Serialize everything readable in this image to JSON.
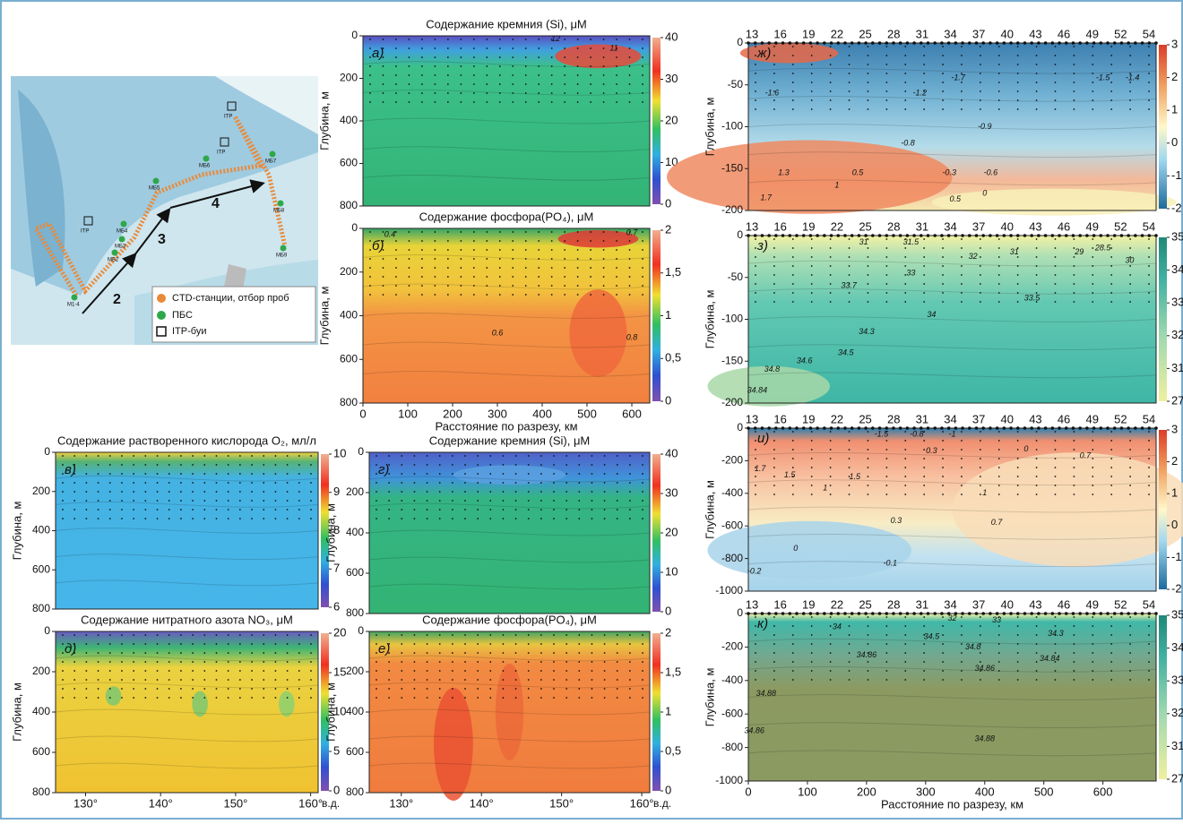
{
  "map": {
    "legend": [
      "CTD-станции, отбор проб",
      "ПБС",
      "ITP-буи"
    ],
    "section_labels": [
      "2",
      "3",
      "4"
    ],
    "station_labels": [
      "M1-4",
      "МБ2",
      "МБ3",
      "МБ4",
      "МБ5",
      "МБ6",
      "МБ7",
      "МБ8",
      "МБ9",
      "ITP",
      "ITP",
      "ITP"
    ]
  },
  "chart_data": [
    {
      "type": "contour",
      "label": "а)",
      "title": "Содержание кремния (Si), μM",
      "ylabel": "Глубина, м",
      "colormap": "rainbow",
      "xlim": [
        0,
        640
      ],
      "ylim": [
        800,
        0
      ],
      "yticks": [
        0,
        200,
        400,
        600,
        800
      ],
      "colorbar_ticks": [
        0,
        10,
        20,
        30,
        40
      ],
      "annotations": [
        {
          "value": 12,
          "x": 430,
          "y": 15
        },
        {
          "value": 11,
          "x": 560,
          "y": 60
        }
      ]
    },
    {
      "type": "contour",
      "label": "б)",
      "title": "Содержание фосфора(PO₄), μM",
      "ylabel": "Глубина, м",
      "xlabel": "Расстояние  по разрезу, км",
      "colormap": "rainbow",
      "xlim": [
        0,
        640
      ],
      "ylim": [
        800,
        0
      ],
      "xticks": [
        0,
        100,
        200,
        300,
        400,
        500,
        600
      ],
      "yticks": [
        0,
        200,
        400,
        600,
        800
      ],
      "colorbar_ticks": [
        0,
        {
          "value": 0.5,
          "label": "0,5"
        },
        1,
        {
          "value": 1.5,
          "label": "1,5"
        },
        2
      ],
      "annotations": [
        {
          "value": 0.4,
          "x": 60,
          "y": 30
        },
        {
          "value": 0.7,
          "x": 600,
          "y": 20
        },
        {
          "value": 0.8,
          "x": 600,
          "y": 500
        },
        {
          "value": 0.6,
          "x": 300,
          "y": 480
        }
      ]
    },
    {
      "type": "contour",
      "label": "в)",
      "title": "Содержание растворенного кислорода O₂, мл/л",
      "ylabel": "Глубина, м",
      "colormap": "rainbow",
      "xlim": [
        126,
        161
      ],
      "ylim": [
        800,
        0
      ],
      "yticks": [
        0,
        200,
        400,
        600,
        800
      ],
      "colorbar_ticks": [
        6,
        7,
        8,
        9,
        10
      ],
      "annotations": []
    },
    {
      "type": "contour",
      "label": "д)",
      "title": "Содержание нитратного азота NO₃, μM",
      "ylabel": "Глубина, м",
      "xunit": "в.д.",
      "colormap": "rainbow",
      "xlim": [
        126,
        161
      ],
      "ylim": [
        800,
        0
      ],
      "xticks": [
        {
          "value": 130,
          "label": "130°"
        },
        {
          "value": 140,
          "label": "140°"
        },
        {
          "value": 150,
          "label": "150°"
        },
        {
          "value": 160,
          "label": "160°"
        }
      ],
      "yticks": [
        0,
        200,
        400,
        600,
        800
      ],
      "colorbar_ticks": [
        0,
        5,
        10,
        15,
        20
      ],
      "annotations": []
    },
    {
      "type": "contour",
      "label": "г)",
      "title": "Содержание кремния (Si), μM",
      "ylabel": "Глубина, м",
      "colormap": "rainbow",
      "xlim": [
        126,
        161
      ],
      "ylim": [
        800,
        0
      ],
      "yticks": [
        0,
        200,
        400,
        600,
        800
      ],
      "colorbar_ticks": [
        0,
        10,
        20,
        30,
        40
      ],
      "annotations": []
    },
    {
      "type": "contour",
      "label": "е)",
      "title": "Содержание фосфора(PO₄), μM",
      "ylabel": "Глубина, м",
      "xunit": "в.д.",
      "colormap": "rainbow",
      "xlim": [
        126,
        161
      ],
      "ylim": [
        800,
        0
      ],
      "xticks": [
        {
          "value": 130,
          "label": "130°"
        },
        {
          "value": 140,
          "label": "140°"
        },
        {
          "value": 150,
          "label": "150°"
        },
        {
          "value": 160,
          "label": "160°"
        }
      ],
      "yticks": [
        0,
        200,
        400,
        600,
        800
      ],
      "colorbar_ticks": [
        0,
        {
          "value": 0.5,
          "label": "0,5"
        },
        1,
        {
          "value": 1.5,
          "label": "1,5"
        },
        2
      ],
      "annotations": []
    },
    {
      "type": "contour",
      "label": "ж)",
      "ylabel": "Глубина, м",
      "colormap": "thermal",
      "xlim": [
        0,
        690
      ],
      "ylim": [
        -200,
        0
      ],
      "top_ticks": [
        "13",
        "16",
        "19",
        "22",
        "25",
        "28",
        "31",
        "34",
        "37",
        "40",
        "43",
        "46",
        "49",
        "52",
        "54"
      ],
      "yticks": [
        0,
        -50,
        -100,
        -150,
        -200
      ],
      "colorbar_ticks": [
        -2,
        -1,
        0,
        1,
        2,
        3
      ],
      "annotations": [
        {
          "value": -1.7,
          "x": 355,
          "y": -42
        },
        {
          "value": -1.6,
          "x": 40,
          "y": -60
        },
        {
          "value": -1.5,
          "x": 600,
          "y": -42
        },
        {
          "value": -1.4,
          "x": 650,
          "y": -42
        },
        {
          "value": -1.2,
          "x": 290,
          "y": -60
        },
        {
          "value": -0.9,
          "x": 400,
          "y": -100
        },
        {
          "value": -0.8,
          "x": 270,
          "y": -120
        },
        {
          "value": -0.3,
          "x": 340,
          "y": -155
        },
        {
          "value": -0.6,
          "x": 410,
          "y": -155
        },
        {
          "value": 0.5,
          "x": 185,
          "y": -155
        },
        {
          "value": 0.5,
          "x": 350,
          "y": -187
        },
        {
          "value": 0,
          "x": 400,
          "y": -180
        },
        {
          "value": 1.3,
          "x": 60,
          "y": -155
        },
        {
          "value": 1.7,
          "x": 30,
          "y": -185
        },
        {
          "value": 1,
          "x": 150,
          "y": -170
        }
      ]
    },
    {
      "type": "contour",
      "label": "з)",
      "ylabel": "Глубина, м",
      "colormap": "haline",
      "xlim": [
        0,
        690
      ],
      "ylim": [
        -200,
        0
      ],
      "top_ticks": [
        "13",
        "16",
        "19",
        "22",
        "25",
        "28",
        "31",
        "34",
        "37",
        "40",
        "43",
        "46",
        "49",
        "52",
        "54"
      ],
      "yticks": [
        0,
        -50,
        -100,
        -150,
        -200
      ],
      "colorbar_ticks": [
        27,
        31,
        32,
        33,
        34,
        35
      ],
      "annotations": [
        {
          "value": 31,
          "x": 195,
          "y": -8
        },
        {
          "value": 31.5,
          "x": 275,
          "y": -8
        },
        {
          "value": 32,
          "x": 380,
          "y": -25
        },
        {
          "value": 31,
          "x": 450,
          "y": -20
        },
        {
          "value": 29,
          "x": 560,
          "y": -20
        },
        {
          "value": 28.5,
          "x": 600,
          "y": -15
        },
        {
          "value": 30,
          "x": 645,
          "y": -30
        },
        {
          "value": 33,
          "x": 275,
          "y": -45
        },
        {
          "value": 33.7,
          "x": 170,
          "y": -60
        },
        {
          "value": 34,
          "x": 310,
          "y": -95
        },
        {
          "value": 33.5,
          "x": 480,
          "y": -75
        },
        {
          "value": 34.3,
          "x": 200,
          "y": -115
        },
        {
          "value": 34.5,
          "x": 165,
          "y": -140
        },
        {
          "value": 34.6,
          "x": 95,
          "y": -150
        },
        {
          "value": 34.8,
          "x": 40,
          "y": -160
        },
        {
          "value": 34.84,
          "x": 15,
          "y": -185
        }
      ]
    },
    {
      "type": "contour",
      "label": "и)",
      "ylabel": "Глубина, м",
      "colormap": "thermal",
      "xlim": [
        0,
        690
      ],
      "ylim": [
        -1000,
        0
      ],
      "top_ticks": [
        "13",
        "16",
        "19",
        "22",
        "25",
        "28",
        "31",
        "34",
        "37",
        "40",
        "43",
        "46",
        "49",
        "52",
        "54"
      ],
      "yticks": [
        0,
        -200,
        -400,
        -600,
        -800,
        -1000
      ],
      "colorbar_ticks": [
        -2,
        -1,
        0,
        1,
        2,
        3
      ],
      "annotations": [
        {
          "value": -1.5,
          "x": 225,
          "y": -40
        },
        {
          "value": -0.8,
          "x": 285,
          "y": -40
        },
        {
          "value": -1,
          "x": 345,
          "y": -40
        },
        {
          "value": 0.3,
          "x": 310,
          "y": -140
        },
        {
          "value": 0,
          "x": 470,
          "y": -130
        },
        {
          "value": 0.7,
          "x": 570,
          "y": -170
        },
        {
          "value": 1.7,
          "x": 20,
          "y": -250
        },
        {
          "value": 1.5,
          "x": 70,
          "y": -290
        },
        {
          "value": 1,
          "x": 130,
          "y": -370
        },
        {
          "value": 1.5,
          "x": 180,
          "y": -300
        },
        {
          "value": 1,
          "x": 400,
          "y": -400
        },
        {
          "value": 0.3,
          "x": 250,
          "y": -570
        },
        {
          "value": 0.7,
          "x": 420,
          "y": -580
        },
        {
          "value": 0,
          "x": 80,
          "y": -740
        },
        {
          "value": -0.1,
          "x": 240,
          "y": -830
        },
        {
          "value": -0.2,
          "x": 10,
          "y": -880
        }
      ]
    },
    {
      "type": "contour",
      "label": "к)",
      "ylabel": "Глубина, м",
      "xlabel": "Расстояние по разрезу, км",
      "colormap": "haline",
      "xlim": [
        0,
        690
      ],
      "ylim": [
        -1000,
        0
      ],
      "top_ticks": [
        "13",
        "16",
        "19",
        "22",
        "25",
        "28",
        "31",
        "34",
        "37",
        "40",
        "43",
        "46",
        "49",
        "52",
        "54"
      ],
      "xticks": [
        0,
        100,
        200,
        300,
        400,
        500,
        600
      ],
      "yticks": [
        0,
        -200,
        -400,
        -600,
        -800,
        -1000
      ],
      "colorbar_ticks": [
        27,
        31,
        32,
        33,
        34,
        35
      ],
      "annotations": [
        {
          "value": 34,
          "x": 150,
          "y": -80
        },
        {
          "value": 32,
          "x": 345,
          "y": -30
        },
        {
          "value": 33,
          "x": 420,
          "y": -40
        },
        {
          "value": 34.3,
          "x": 520,
          "y": -120
        },
        {
          "value": 34.5,
          "x": 310,
          "y": -140
        },
        {
          "value": 34.8,
          "x": 380,
          "y": -200
        },
        {
          "value": 34.86,
          "x": 200,
          "y": -250
        },
        {
          "value": 34.84,
          "x": 510,
          "y": -270
        },
        {
          "value": 34.86,
          "x": 400,
          "y": -330
        },
        {
          "value": 34.88,
          "x": 30,
          "y": -480
        },
        {
          "value": 34.86,
          "x": 10,
          "y": -700
        },
        {
          "value": 34.88,
          "x": 400,
          "y": -750
        }
      ]
    }
  ]
}
